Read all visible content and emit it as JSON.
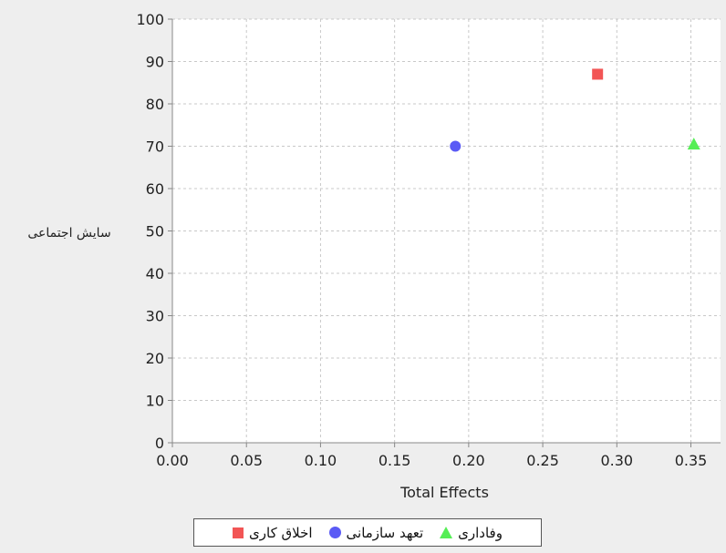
{
  "chart_data": {
    "type": "scatter",
    "title": "",
    "xlabel": "Total Effects",
    "ylabel": "سایش اجتماعی",
    "xlim": [
      0.0,
      0.37
    ],
    "ylim": [
      0,
      100
    ],
    "x_ticks": [
      "0.00",
      "0.05",
      "0.10",
      "0.15",
      "0.20",
      "0.25",
      "0.30",
      "0.35"
    ],
    "x_tick_values": [
      0.0,
      0.05,
      0.1,
      0.15,
      0.2,
      0.25,
      0.3,
      0.35
    ],
    "y_ticks": [
      "0",
      "10",
      "20",
      "30",
      "40",
      "50",
      "60",
      "70",
      "80",
      "90",
      "100"
    ],
    "y_tick_values": [
      0,
      10,
      20,
      30,
      40,
      50,
      60,
      70,
      80,
      90,
      100
    ],
    "grid": true,
    "legend_position": "bottom",
    "series": [
      {
        "name": "اخلاق کاری",
        "marker": "square",
        "color": "#f25555",
        "points": [
          {
            "x": 0.287,
            "y": 87
          }
        ]
      },
      {
        "name": "تعهد سازمانی",
        "marker": "circle",
        "color": "#5a5af5",
        "points": [
          {
            "x": 0.191,
            "y": 70
          }
        ]
      },
      {
        "name": "وفاداری",
        "marker": "triangle",
        "color": "#55ee55",
        "points": [
          {
            "x": 0.352,
            "y": 70.5
          }
        ]
      }
    ]
  }
}
